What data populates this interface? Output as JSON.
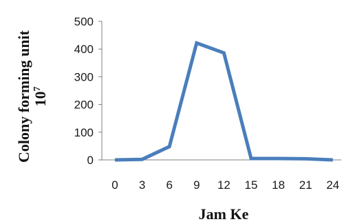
{
  "chart_data": {
    "type": "line",
    "title": "",
    "xlabel": "Jam Ke",
    "ylabel_line1": "Colony forming unit",
    "ylabel_line2": "10",
    "ylabel_sup": "7",
    "x": [
      0,
      3,
      6,
      9,
      12,
      15,
      18,
      21,
      24
    ],
    "x_tick_labels": [
      "0",
      "3",
      "6",
      "9",
      "12",
      "15",
      "18",
      "21",
      "24"
    ],
    "y_ticks": [
      0,
      100,
      200,
      300,
      400,
      500
    ],
    "y_tick_labels": [
      "0",
      "100",
      "200",
      "300",
      "400",
      "500"
    ],
    "ylim": [
      0,
      500
    ],
    "grid": false,
    "series": [
      {
        "values": [
          0,
          2,
          48,
          422,
          386,
          5,
          5,
          4,
          0
        ]
      }
    ],
    "colors": {
      "series": "#4a7ebb",
      "axis": "#7f7f7f"
    }
  }
}
